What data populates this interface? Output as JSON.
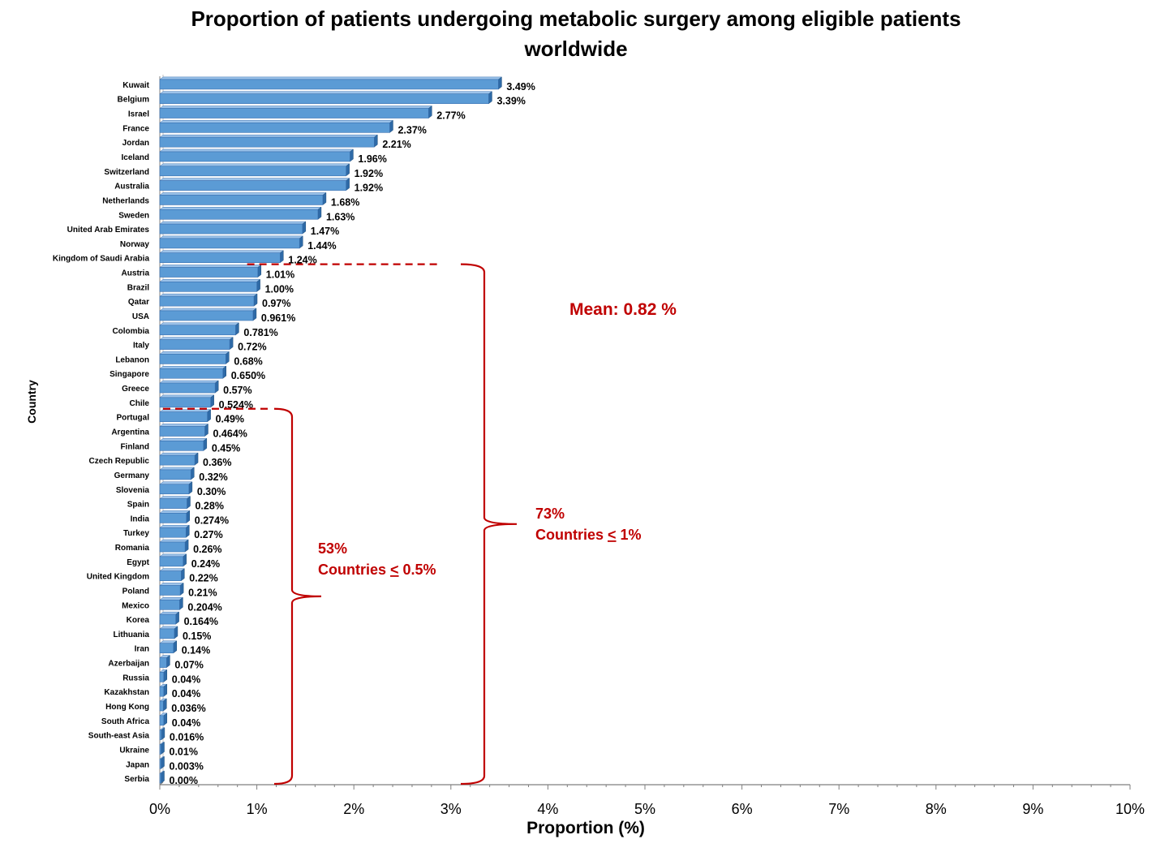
{
  "colors": {
    "bar_front": "#5b9bd5",
    "bar_side": "#2e6aa7",
    "bar_top": "#9cc3ea",
    "annotation": "#c00000",
    "axis": "#7f7f7f"
  },
  "chart_data": {
    "type": "bar",
    "orientation": "horizontal",
    "title": "Proportion of patients undergoing metabolic surgery among eligible patients worldwide",
    "title_lines": [
      "Proportion of patients undergoing metabolic surgery among eligible patients",
      "worldwide"
    ],
    "xlabel": "Proportion (%)",
    "ylabel": "Country",
    "xlim": [
      0,
      10
    ],
    "x_ticks": [
      "0%",
      "1%",
      "2%",
      "3%",
      "4%",
      "5%",
      "6%",
      "7%",
      "8%",
      "9%",
      "10%"
    ],
    "categories": [
      "Kuwait",
      "Belgium",
      "Israel",
      "France",
      "Jordan",
      "Iceland",
      "Switzerland",
      "Australia",
      "Netherlands",
      "Sweden",
      "United Arab Emirates",
      "Norway",
      "Kingdom of Saudi Arabia",
      "Austria",
      "Brazil",
      "Qatar",
      "USA",
      "Colombia",
      "Italy",
      "Lebanon",
      "Singapore",
      "Greece",
      "Chile",
      "Portugal",
      "Argentina",
      "Finland",
      "Czech Republic",
      "Germany",
      "Slovenia",
      "Spain",
      "India",
      "Turkey",
      "Romania",
      "Egypt",
      "United Kingdom",
      "Poland",
      "Mexico",
      "Korea",
      "Lithuania",
      "Iran",
      "Azerbaijan",
      "Russia",
      "Kazakhstan",
      "Hong Kong",
      "South Africa",
      "South-east Asia",
      "Ukraine",
      "Japan",
      "Serbia"
    ],
    "values": [
      3.49,
      3.39,
      2.77,
      2.37,
      2.21,
      1.96,
      1.92,
      1.92,
      1.68,
      1.63,
      1.47,
      1.44,
      1.24,
      1.01,
      1.0,
      0.97,
      0.961,
      0.781,
      0.72,
      0.68,
      0.65,
      0.57,
      0.524,
      0.49,
      0.464,
      0.45,
      0.36,
      0.32,
      0.3,
      0.28,
      0.274,
      0.27,
      0.26,
      0.24,
      0.22,
      0.21,
      0.204,
      0.164,
      0.15,
      0.14,
      0.07,
      0.04,
      0.04,
      0.036,
      0.04,
      0.016,
      0.01,
      0.003,
      0.0
    ],
    "data_labels": [
      "3.49%",
      "3.39%",
      "2.77%",
      "2.37%",
      "2.21%",
      "1.96%",
      "1.92%",
      "1.92%",
      "1.68%",
      "1.63%",
      "1.47%",
      "1.44%",
      "1.24%",
      "1.01%",
      "1.00%",
      "0.97%",
      "0.961%",
      "0.781%",
      "0.72%",
      "0.68%",
      "0.650%",
      "0.57%",
      "0.524%",
      "0.49%",
      "0.464%",
      "0.45%",
      "0.36%",
      "0.32%",
      "0.30%",
      "0.28%",
      "0.274%",
      "0.27%",
      "0.26%",
      "0.24%",
      "0.22%",
      "0.21%",
      "0.204%",
      "0.164%",
      "0.15%",
      "0.14%",
      "0.07%",
      "0.04%",
      "0.04%",
      "0.036%",
      "0.04%",
      "0.016%",
      "0.01%",
      "0.003%",
      "0.00%"
    ],
    "annotations": {
      "mean_label": "Mean: 0.82 %",
      "group_1pct": {
        "percent": "73%",
        "prefix": "Countries ",
        "symbol": "<",
        "suffix": " 1%",
        "from_category": "Austria",
        "to_category": "Serbia"
      },
      "group_half_pct": {
        "percent": "53%",
        "prefix": "Countries ",
        "symbol": "<",
        "suffix": " 0.5%",
        "from_category": "Portugal",
        "to_category": "Serbia"
      }
    },
    "grid": false
  }
}
